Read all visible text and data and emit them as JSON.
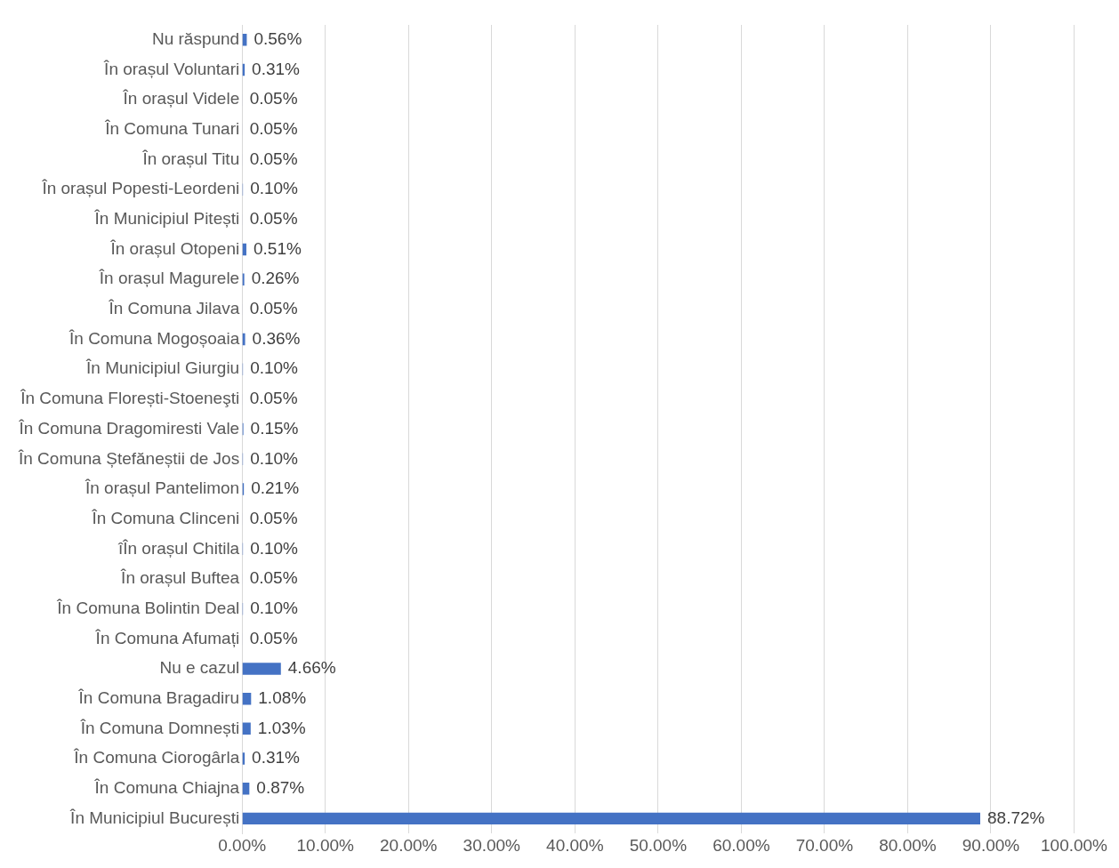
{
  "chart_data": {
    "type": "bar",
    "orientation": "horizontal",
    "color": "#4472c4",
    "grid": "x",
    "categories": [
      "Nu răspund",
      "În orașul Voluntari",
      "În orașul Videle",
      "În Comuna Tunari",
      "În orașul Titu",
      "În orașul Popesti-Leordeni",
      "În Municipiul Pitești",
      "În orașul Otopeni",
      "În orașul Magurele",
      "În Comuna Jilava",
      "În Comuna Mogoșoaia",
      "În Municipiul Giurgiu",
      "În Comuna Florești-Stoeneşti",
      "În Comuna Dragomiresti Vale",
      "În Comuna Ștefăneștii de Jos",
      "În orașul Pantelimon",
      "În Comuna Clinceni",
      "îÎn orașul Chitila",
      "În orașul Buftea",
      "În Comuna Bolintin Deal",
      "În Comuna Afumați",
      "Nu e cazul",
      "În Comuna Bragadiru",
      "În Comuna Domnești",
      "În Comuna Ciorogârla",
      "În Comuna Chiajna",
      "În Municipiul București"
    ],
    "values": [
      0.56,
      0.31,
      0.05,
      0.05,
      0.05,
      0.1,
      0.05,
      0.51,
      0.26,
      0.05,
      0.36,
      0.1,
      0.05,
      0.15,
      0.1,
      0.21,
      0.05,
      0.1,
      0.05,
      0.1,
      0.05,
      4.66,
      1.08,
      1.03,
      0.31,
      0.87,
      88.72
    ],
    "value_labels": [
      "0.56%",
      "0.31%",
      "0.05%",
      "0.05%",
      "0.05%",
      "0.10%",
      "0.05%",
      "0.51%",
      "0.26%",
      "0.05%",
      "0.36%",
      "0.10%",
      "0.05%",
      "0.15%",
      "0.10%",
      "0.21%",
      "0.05%",
      "0.10%",
      "0.05%",
      "0.10%",
      "0.05%",
      "4.66%",
      "1.08%",
      "1.03%",
      "0.31%",
      "0.87%",
      "88.72%"
    ],
    "xlim": [
      0,
      100
    ],
    "xticks": [
      {
        "value": 0,
        "label": "0.00%"
      },
      {
        "value": 10,
        "label": "10.00%"
      },
      {
        "value": 20,
        "label": "20.00%"
      },
      {
        "value": 30,
        "label": "30.00%"
      },
      {
        "value": 40,
        "label": "40.00%"
      },
      {
        "value": 50,
        "label": "50.00%"
      },
      {
        "value": 60,
        "label": "60.00%"
      },
      {
        "value": 70,
        "label": "70.00%"
      },
      {
        "value": 80,
        "label": "80.00%"
      },
      {
        "value": 90,
        "label": "90.00%"
      },
      {
        "value": 100,
        "label": "100.00%"
      }
    ]
  }
}
